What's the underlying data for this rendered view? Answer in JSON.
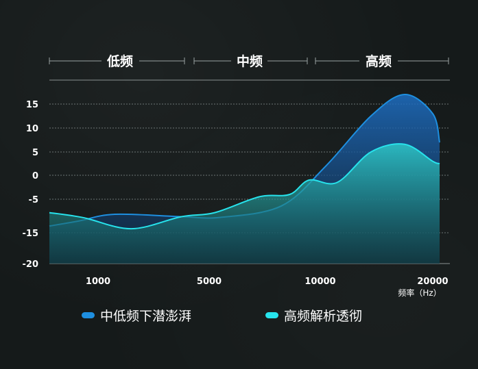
{
  "chart_data": {
    "type": "area",
    "bands": [
      "低频",
      "中频",
      "高频"
    ],
    "y_ticks": [
      15,
      10,
      5,
      0,
      -5,
      -15,
      -20
    ],
    "x_ticks": [
      "1000",
      "5000",
      "10000",
      "20000"
    ],
    "x_unit": "频率（Hz）",
    "grid": true,
    "legend_position": "bottom",
    "series": [
      {
        "name": "中低频下潜澎湃",
        "color": "#1e8fe0",
        "points": [
          [
            0,
            -13
          ],
          [
            0.6,
            -11.5
          ],
          [
            1.3,
            -9.5
          ],
          [
            2.5,
            -10.2
          ],
          [
            3.2,
            -10.4
          ],
          [
            4.3,
            -7
          ],
          [
            5.1,
            2
          ],
          [
            5.9,
            12.5
          ],
          [
            6.5,
            17
          ],
          [
            7,
            13
          ],
          [
            7.4,
            7
          ]
        ]
      },
      {
        "name": "高频解析透彻",
        "color": "#27e3ec",
        "points": [
          [
            0,
            -9
          ],
          [
            0.7,
            -10.5
          ],
          [
            1.6,
            -13.8
          ],
          [
            2.5,
            -10.2
          ],
          [
            3.1,
            -9
          ],
          [
            3.9,
            -4.5
          ],
          [
            4.45,
            -4
          ],
          [
            4.8,
            -1
          ],
          [
            5.3,
            -1.5
          ],
          [
            5.9,
            5
          ],
          [
            6.5,
            6.6
          ],
          [
            7,
            3
          ],
          [
            7.4,
            2.5
          ]
        ]
      }
    ]
  }
}
